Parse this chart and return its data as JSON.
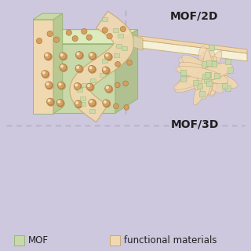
{
  "bg_color": "#cec8de",
  "mof_color": "#c8d8a8",
  "func_color": "#f0d8b0",
  "mof_dark": "#98b878",
  "func_dark": "#c8a870",
  "sphere_color": "#d4a060",
  "sphere_edge": "#a87030",
  "text_color": "#202020",
  "dashed_color": "#b0a8c8",
  "label_mof2d": "MOF/2D",
  "label_mof3d": "MOF/3D",
  "legend_mof": "MOF",
  "legend_func": "functional materials",
  "fig_width": 3.2,
  "fig_height": 3.2,
  "dpi": 100
}
